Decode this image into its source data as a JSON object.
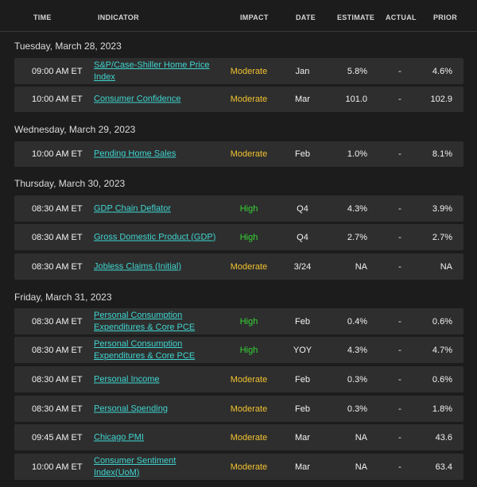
{
  "headers": {
    "time": "TIME",
    "indicator": "INDICATOR",
    "impact": "IMPACT",
    "date": "DATE",
    "estimate": "ESTIMATE",
    "actual": "ACTUAL",
    "prior": "PRIOR"
  },
  "colors": {
    "background": "#1c1c1c",
    "row_background": "#2e2e2e",
    "link": "#3fd5d0",
    "impact_moderate": "#f2c230",
    "impact_high": "#35d435"
  },
  "sections": [
    {
      "title": "Tuesday, March 28, 2023",
      "rows": [
        {
          "time": "09:00 AM ET",
          "indicator": "S&P/Case-Shiller Home Price Index",
          "impact": "Moderate",
          "date": "Jan",
          "estimate": "5.8%",
          "actual": "-",
          "prior": "4.6%"
        },
        {
          "time": "10:00 AM ET",
          "indicator": "Consumer Confidence",
          "impact": "Moderate",
          "date": "Mar",
          "estimate": "101.0",
          "actual": "-",
          "prior": "102.9"
        }
      ]
    },
    {
      "title": "Wednesday, March 29, 2023",
      "rows": [
        {
          "time": "10:00 AM ET",
          "indicator": "Pending Home Sales",
          "impact": "Moderate",
          "date": "Feb",
          "estimate": "1.0%",
          "actual": "-",
          "prior": "8.1%"
        }
      ]
    },
    {
      "title": "Thursday, March 30, 2023",
      "rows": [
        {
          "time": "08:30 AM ET",
          "indicator": "GDP Chain Deflator",
          "impact": "High",
          "date": "Q4",
          "estimate": "4.3%",
          "actual": "-",
          "prior": "3.9%"
        },
        {
          "time": "08:30 AM ET",
          "indicator": "Gross Domestic Product (GDP)",
          "impact": "High",
          "date": "Q4",
          "estimate": "2.7%",
          "actual": "-",
          "prior": "2.7%"
        },
        {
          "time": "08:30 AM ET",
          "indicator": "Jobless Claims (Initial)",
          "impact": "Moderate",
          "date": "3/24",
          "estimate": "NA",
          "actual": "-",
          "prior": "NA"
        }
      ]
    },
    {
      "title": "Friday, March 31, 2023",
      "rows": [
        {
          "time": "08:30 AM ET",
          "indicator": "Personal Consumption Expenditures & Core PCE",
          "impact": "High",
          "date": "Feb",
          "estimate": "0.4%",
          "actual": "-",
          "prior": "0.6%"
        },
        {
          "time": "08:30 AM ET",
          "indicator": "Personal Consumption Expenditures & Core PCE",
          "impact": "High",
          "date": "YOY",
          "estimate": "4.3%",
          "actual": "-",
          "prior": "4.7%"
        },
        {
          "time": "08:30 AM ET",
          "indicator": "Personal Income",
          "impact": "Moderate",
          "date": "Feb",
          "estimate": "0.3%",
          "actual": "-",
          "prior": "0.6%"
        },
        {
          "time": "08:30 AM ET",
          "indicator": "Personal Spending",
          "impact": "Moderate",
          "date": "Feb",
          "estimate": "0.3%",
          "actual": "-",
          "prior": "1.8%"
        },
        {
          "time": "09:45 AM ET",
          "indicator": "Chicago PMI",
          "impact": "Moderate",
          "date": "Mar",
          "estimate": "NA",
          "actual": "-",
          "prior": "43.6"
        },
        {
          "time": "10:00 AM ET",
          "indicator": "Consumer Sentiment Index(UoM)",
          "impact": "Moderate",
          "date": "Mar",
          "estimate": "NA",
          "actual": "-",
          "prior": "63.4"
        }
      ]
    }
  ]
}
